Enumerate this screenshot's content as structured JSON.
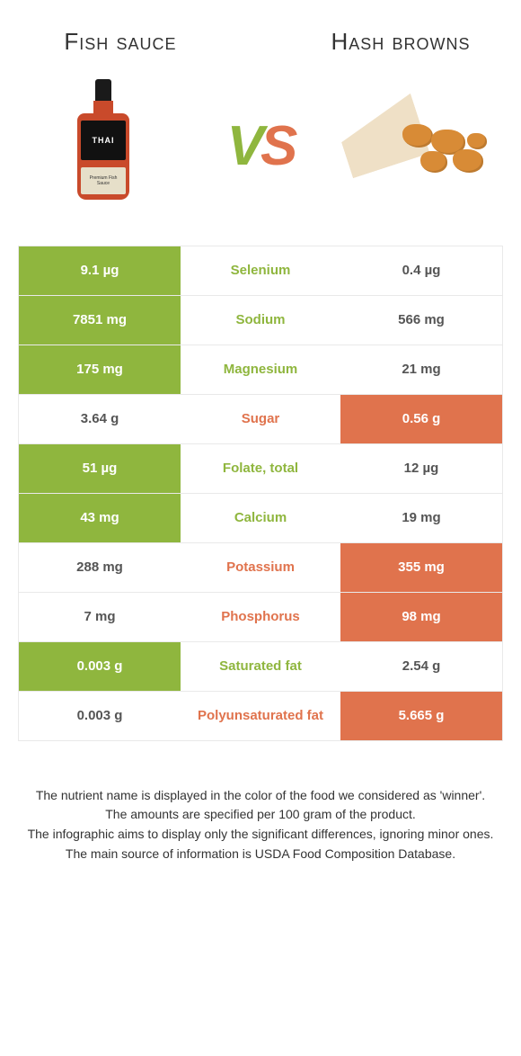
{
  "header": {
    "left_title": "Fish sauce",
    "right_title": "Hash browns",
    "vs_v": "V",
    "vs_s": "S"
  },
  "colors": {
    "left_win": "#8fb63e",
    "right_win": "#e0734d",
    "row_border": "#e9e9e9",
    "text_dark": "#333333"
  },
  "table": {
    "rows": [
      {
        "left": "9.1 µg",
        "name": "Selenium",
        "right": "0.4 µg",
        "winner": "left"
      },
      {
        "left": "7851 mg",
        "name": "Sodium",
        "right": "566 mg",
        "winner": "left"
      },
      {
        "left": "175 mg",
        "name": "Magnesium",
        "right": "21 mg",
        "winner": "left"
      },
      {
        "left": "3.64 g",
        "name": "Sugar",
        "right": "0.56 g",
        "winner": "right"
      },
      {
        "left": "51 µg",
        "name": "Folate, total",
        "right": "12 µg",
        "winner": "left"
      },
      {
        "left": "43 mg",
        "name": "Calcium",
        "right": "19 mg",
        "winner": "left"
      },
      {
        "left": "288 mg",
        "name": "Potassium",
        "right": "355 mg",
        "winner": "right"
      },
      {
        "left": "7 mg",
        "name": "Phosphorus",
        "right": "98 mg",
        "winner": "right"
      },
      {
        "left": "0.003 g",
        "name": "Saturated fat",
        "right": "2.54 g",
        "winner": "left"
      },
      {
        "left": "0.003 g",
        "name": "Polyunsaturated fat",
        "right": "5.665 g",
        "winner": "right"
      }
    ]
  },
  "footnotes": {
    "line1": "The nutrient name is displayed in the color of the food we considered as 'winner'.",
    "line2": "The amounts are specified per 100 gram of the product.",
    "line3": "The infographic aims to display only the significant differences, ignoring minor ones.",
    "line4": "The main source of information is USDA Food Composition Database."
  }
}
